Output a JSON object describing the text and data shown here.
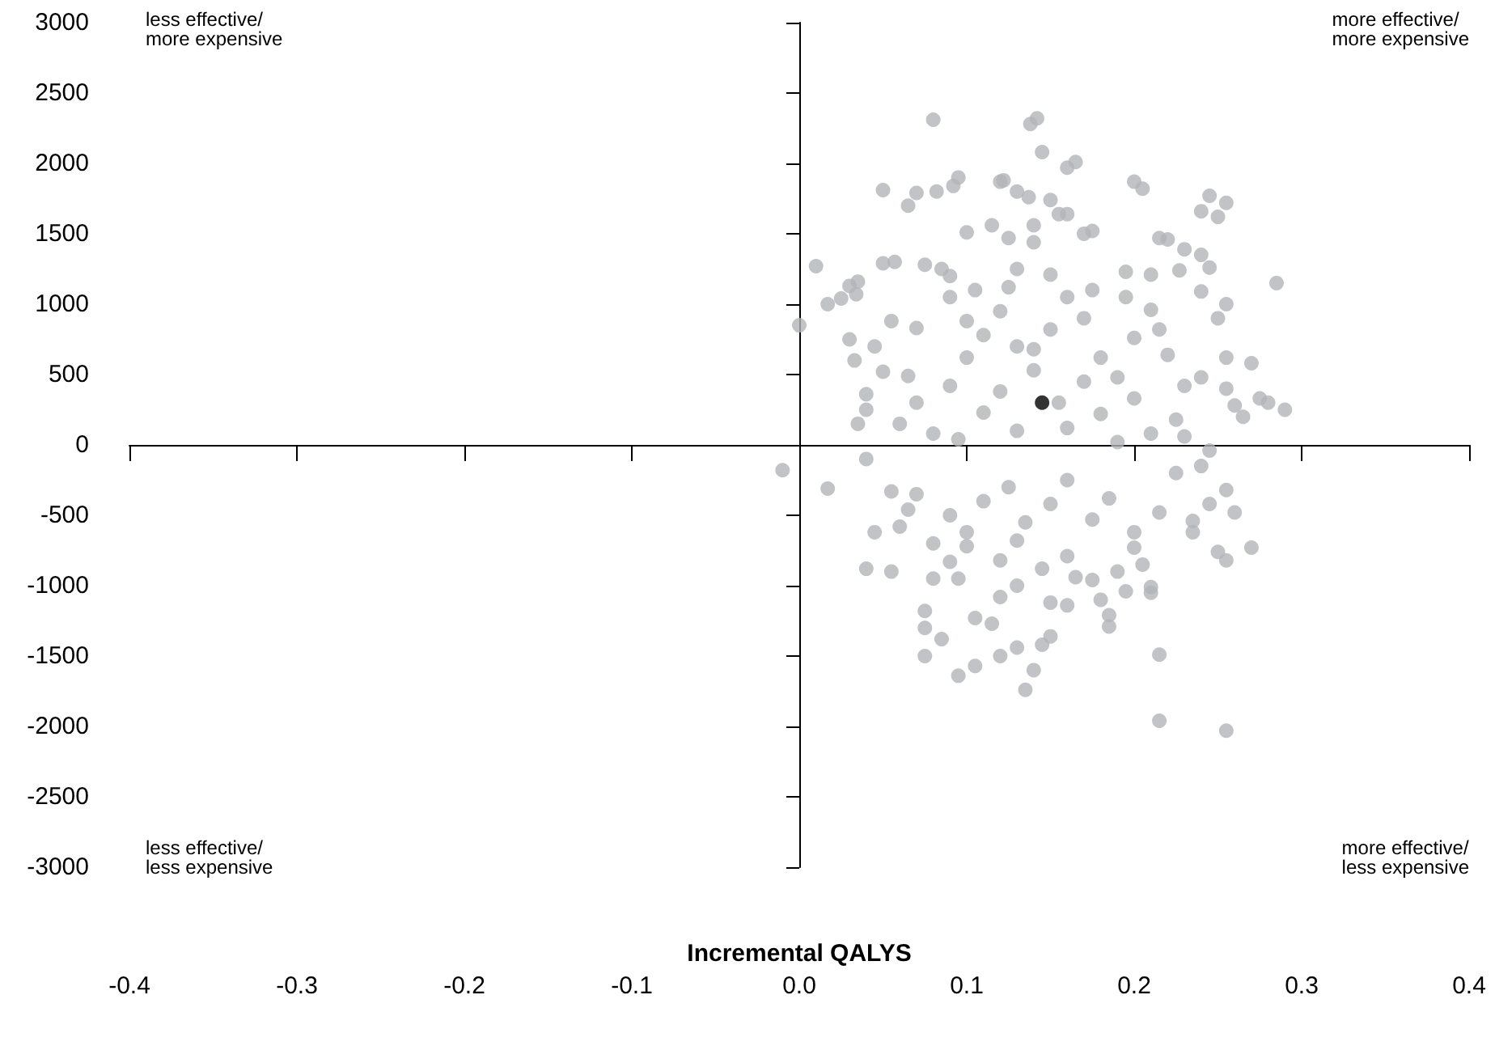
{
  "chart_data": {
    "type": "scatter",
    "xlabel": "Incremental QALYS",
    "xlim": [
      -0.4,
      0.4
    ],
    "xticks": [
      -0.4,
      -0.3,
      -0.2,
      -0.1,
      {
        "value": 0,
        "label": "0.0"
      },
      0.1,
      0.2,
      0.3,
      0.4
    ],
    "ylim": [
      -3000,
      3000
    ],
    "yticks": [
      -3000,
      -2500,
      -2000,
      -1500,
      -1000,
      -500,
      0,
      500,
      1000,
      1500,
      2000,
      2500,
      3000
    ],
    "marker": "circle",
    "annotations": [
      "less effective/\nmore expensive",
      "more effective/\nmore expensive",
      "less effective/\nless expensive",
      "more effective/\nless expensive"
    ],
    "series": [
      {
        "color": "#b3b4b8",
        "x": [
          -0.01,
          0.017,
          0.0,
          0.01,
          0.017,
          0.025,
          0.034,
          0.08,
          0.138,
          0.142,
          0.145,
          0.16,
          0.165,
          0.095,
          0.092,
          0.082,
          0.065,
          0.07,
          0.05,
          0.12,
          0.122,
          0.13,
          0.137,
          0.15,
          0.155,
          0.2,
          0.205,
          0.245,
          0.24,
          0.25,
          0.255,
          0.1,
          0.115,
          0.125,
          0.14,
          0.14,
          0.16,
          0.17,
          0.175,
          0.215,
          0.22,
          0.23,
          0.24,
          0.245,
          0.05,
          0.057,
          0.035,
          0.03,
          0.075,
          0.085,
          0.09,
          0.13,
          0.15,
          0.195,
          0.21,
          0.227,
          0.24,
          0.285,
          0.255,
          0.25,
          0.255,
          0.27,
          0.275,
          0.28,
          0.29,
          0.255,
          0.26,
          0.24,
          0.265,
          0.03,
          0.033,
          0.045,
          0.05,
          0.065,
          0.07,
          0.055,
          0.04,
          0.04,
          0.035,
          0.06,
          0.08,
          0.07,
          0.09,
          0.1,
          0.11,
          0.12,
          0.13,
          0.14,
          0.15,
          0.16,
          0.17,
          0.18,
          0.19,
          0.2,
          0.21,
          0.22,
          0.23,
          0.2,
          0.18,
          0.16,
          0.13,
          0.11,
          0.12,
          0.155,
          0.17,
          0.14,
          0.1,
          0.09,
          0.105,
          0.125,
          0.175,
          0.195,
          0.215,
          0.225,
          0.21,
          0.19,
          0.095,
          0.23,
          0.245,
          0.04,
          0.055,
          0.045,
          0.06,
          0.065,
          0.07,
          0.08,
          0.09,
          0.1,
          0.11,
          0.125,
          0.135,
          0.15,
          0.16,
          0.175,
          0.185,
          0.2,
          0.215,
          0.225,
          0.24,
          0.255,
          0.245,
          0.235,
          0.26,
          0.235,
          0.27,
          0.255,
          0.25,
          0.055,
          0.04,
          0.08,
          0.095,
          0.09,
          0.1,
          0.12,
          0.13,
          0.145,
          0.16,
          0.175,
          0.19,
          0.2,
          0.21,
          0.205,
          0.075,
          0.075,
          0.075,
          0.085,
          0.105,
          0.115,
          0.095,
          0.105,
          0.12,
          0.13,
          0.14,
          0.135,
          0.145,
          0.15,
          0.15,
          0.16,
          0.185,
          0.18,
          0.185,
          0.21,
          0.215,
          0.215,
          0.255,
          0.165,
          0.195,
          0.12,
          0.13
        ],
        "values": [
          -180,
          -310,
          850,
          1270,
          1000,
          1040,
          1070,
          2310,
          2280,
          2320,
          2080,
          1970,
          2010,
          1900,
          1840,
          1800,
          1700,
          1790,
          1810,
          1870,
          1880,
          1800,
          1760,
          1740,
          1640,
          1870,
          1820,
          1770,
          1660,
          1620,
          1720,
          1510,
          1560,
          1470,
          1560,
          1440,
          1640,
          1500,
          1520,
          1470,
          1460,
          1390,
          1350,
          1260,
          1290,
          1300,
          1160,
          1130,
          1280,
          1250,
          1200,
          1250,
          1210,
          1230,
          1210,
          1240,
          1090,
          1150,
          1000,
          900,
          620,
          580,
          330,
          300,
          250,
          400,
          280,
          480,
          200,
          750,
          600,
          700,
          520,
          490,
          830,
          880,
          360,
          250,
          150,
          150,
          80,
          300,
          420,
          620,
          780,
          950,
          700,
          530,
          820,
          1050,
          900,
          620,
          480,
          760,
          960,
          640,
          420,
          330,
          220,
          120,
          100,
          230,
          380,
          300,
          450,
          680,
          880,
          1050,
          1100,
          1120,
          1100,
          1050,
          820,
          180,
          80,
          20,
          40,
          60,
          -40,
          -100,
          -330,
          -620,
          -580,
          -460,
          -350,
          -700,
          -500,
          -620,
          -400,
          -300,
          -550,
          -420,
          -250,
          -530,
          -380,
          -620,
          -480,
          -200,
          -150,
          -320,
          -420,
          -540,
          -480,
          -620,
          -730,
          -820,
          -760,
          -900,
          -880,
          -950,
          -950,
          -830,
          -720,
          -820,
          -680,
          -880,
          -790,
          -960,
          -900,
          -730,
          -1010,
          -850,
          -1180,
          -1300,
          -1500,
          -1380,
          -1230,
          -1270,
          -1640,
          -1570,
          -1500,
          -1440,
          -1600,
          -1740,
          -1420,
          -1360,
          -1120,
          -1140,
          -1210,
          -1100,
          -1290,
          -1050,
          -1490,
          -1960,
          -2030,
          -940,
          -1040,
          -1080,
          -1000
        ]
      },
      {
        "color": "#000000",
        "x": [
          0.145
        ],
        "values": [
          300
        ]
      }
    ]
  }
}
